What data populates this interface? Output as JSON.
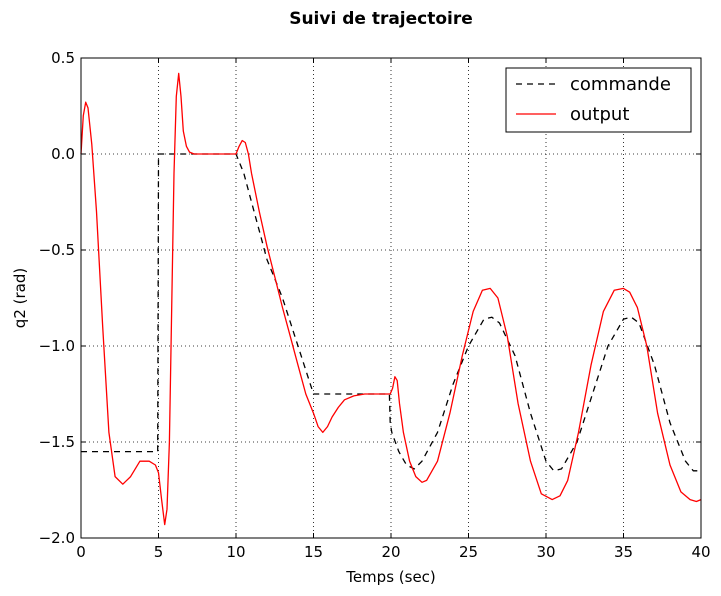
{
  "chart_data": {
    "type": "line",
    "title": "Suivi de trajectoire",
    "xlabel": "Temps (sec)",
    "ylabel": "q2 (rad)",
    "xlim": [
      0,
      40
    ],
    "ylim": [
      -2.0,
      0.5
    ],
    "x_ticks": [
      0,
      5,
      10,
      15,
      20,
      25,
      30,
      35,
      40
    ],
    "x_tick_labels": [
      "0",
      "5",
      "10",
      "15",
      "20",
      "25",
      "30",
      "35",
      "40"
    ],
    "y_ticks": [
      0.5,
      0.0,
      -0.5,
      -1.0,
      -1.5,
      -2.0
    ],
    "y_tick_labels": [
      "0.5",
      "0.0",
      "−0.5",
      "−1.0",
      "−1.5",
      "−2.0"
    ],
    "grid": true,
    "legend_position": "top-right",
    "colors": {
      "commande": "#000000",
      "output": "#ff0000"
    },
    "series": [
      {
        "name": "commande",
        "style": "dashed",
        "x": [
          0,
          4.95,
          4.95,
          5.0,
          10.0,
          10.5,
          11.0,
          11.5,
          12.0,
          12.5,
          13.0,
          14.0,
          15.0,
          17,
          19.9,
          19.95,
          20.05,
          20.5,
          21.0,
          21.5,
          22.0,
          23.0,
          24.0,
          25.0,
          26.0,
          26.5,
          27.0,
          28.0,
          29.0,
          30.0,
          30.5,
          31.0,
          32.0,
          33.0,
          34.0,
          35.0,
          35.5,
          36.0,
          37.0,
          38.0,
          39.0,
          39.5,
          40.0
        ],
        "y": [
          -1.55,
          -1.55,
          -1.55,
          0.0,
          0.0,
          -0.1,
          -0.25,
          -0.4,
          -0.55,
          -0.65,
          -0.75,
          -1.0,
          -1.25,
          -1.25,
          -1.25,
          -1.4,
          -1.45,
          -1.55,
          -1.62,
          -1.64,
          -1.6,
          -1.45,
          -1.2,
          -1.0,
          -0.86,
          -0.85,
          -0.88,
          -1.05,
          -1.35,
          -1.6,
          -1.65,
          -1.64,
          -1.5,
          -1.25,
          -1.0,
          -0.86,
          -0.85,
          -0.88,
          -1.1,
          -1.4,
          -1.6,
          -1.65,
          -1.65
        ]
      },
      {
        "name": "output",
        "style": "solid",
        "x": [
          0,
          0.15,
          0.3,
          0.45,
          0.7,
          1.0,
          1.4,
          1.8,
          2.2,
          2.7,
          3.2,
          3.8,
          4.4,
          4.8,
          5.0,
          5.2,
          5.4,
          5.55,
          5.7,
          5.85,
          6.0,
          6.15,
          6.3,
          6.45,
          6.6,
          6.8,
          7.0,
          7.3,
          7.7,
          8.2,
          9.0,
          10.0,
          10.2,
          10.4,
          10.6,
          10.8,
          11.0,
          11.5,
          12.0,
          12.5,
          13.0,
          13.5,
          14.0,
          14.5,
          15.0,
          15.3,
          15.6,
          15.9,
          16.2,
          16.6,
          17.0,
          17.6,
          18.3,
          19.0,
          19.95,
          20.1,
          20.25,
          20.4,
          20.55,
          20.8,
          21.2,
          21.6,
          22.0,
          22.3,
          23.0,
          23.8,
          24.6,
          25.3,
          25.9,
          26.4,
          26.9,
          27.5,
          28.2,
          29.0,
          29.7,
          30.4,
          30.9,
          31.4,
          32.1,
          32.9,
          33.7,
          34.4,
          35.0,
          35.4,
          35.9,
          36.5,
          37.2,
          38.0,
          38.7,
          39.3,
          39.7,
          40.0
        ],
        "y": [
          0.0,
          0.2,
          0.27,
          0.24,
          0.05,
          -0.3,
          -0.9,
          -1.45,
          -1.68,
          -1.72,
          -1.68,
          -1.6,
          -1.6,
          -1.62,
          -1.66,
          -1.8,
          -1.93,
          -1.85,
          -1.5,
          -0.8,
          -0.1,
          0.3,
          0.42,
          0.3,
          0.12,
          0.04,
          0.01,
          0.0,
          0.0,
          0.0,
          0.0,
          0.0,
          0.04,
          0.07,
          0.06,
          0.0,
          -0.1,
          -0.3,
          -0.48,
          -0.64,
          -0.8,
          -0.95,
          -1.1,
          -1.25,
          -1.35,
          -1.42,
          -1.45,
          -1.42,
          -1.37,
          -1.32,
          -1.28,
          -1.26,
          -1.25,
          -1.25,
          -1.25,
          -1.22,
          -1.16,
          -1.18,
          -1.3,
          -1.45,
          -1.6,
          -1.68,
          -1.71,
          -1.7,
          -1.6,
          -1.35,
          -1.05,
          -0.82,
          -0.71,
          -0.7,
          -0.75,
          -0.95,
          -1.3,
          -1.6,
          -1.77,
          -1.8,
          -1.78,
          -1.7,
          -1.45,
          -1.1,
          -0.82,
          -0.71,
          -0.7,
          -0.72,
          -0.8,
          -1.0,
          -1.35,
          -1.62,
          -1.76,
          -1.8,
          -1.81,
          -1.8
        ]
      }
    ]
  }
}
